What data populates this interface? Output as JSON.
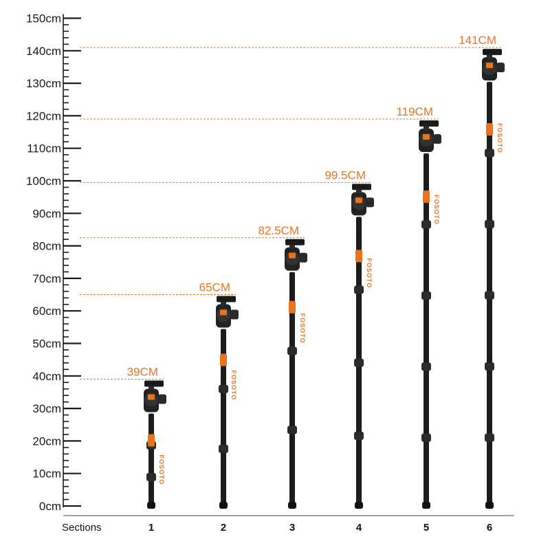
{
  "chart_data": {
    "type": "bar",
    "xlabel": "Sections",
    "ylabel": "",
    "categories": [
      "1",
      "2",
      "3",
      "4",
      "5",
      "6"
    ],
    "values": [
      39,
      65,
      82.5,
      99.5,
      119,
      141
    ],
    "data_labels": [
      "39CM",
      "65CM",
      "82.5CM",
      "99.5CM",
      "119CM",
      "141CM"
    ],
    "yticks": [
      0,
      10,
      20,
      30,
      40,
      50,
      60,
      70,
      80,
      90,
      100,
      110,
      120,
      130,
      140,
      150
    ],
    "ytick_unit": "cm",
    "ylim": [
      0,
      150
    ],
    "reference_lines": "dashed",
    "brand": "FOSOTO",
    "colors": {
      "accent": "#e9731f",
      "pole": "#1c1c1c",
      "text": "#1a1a1a"
    }
  }
}
